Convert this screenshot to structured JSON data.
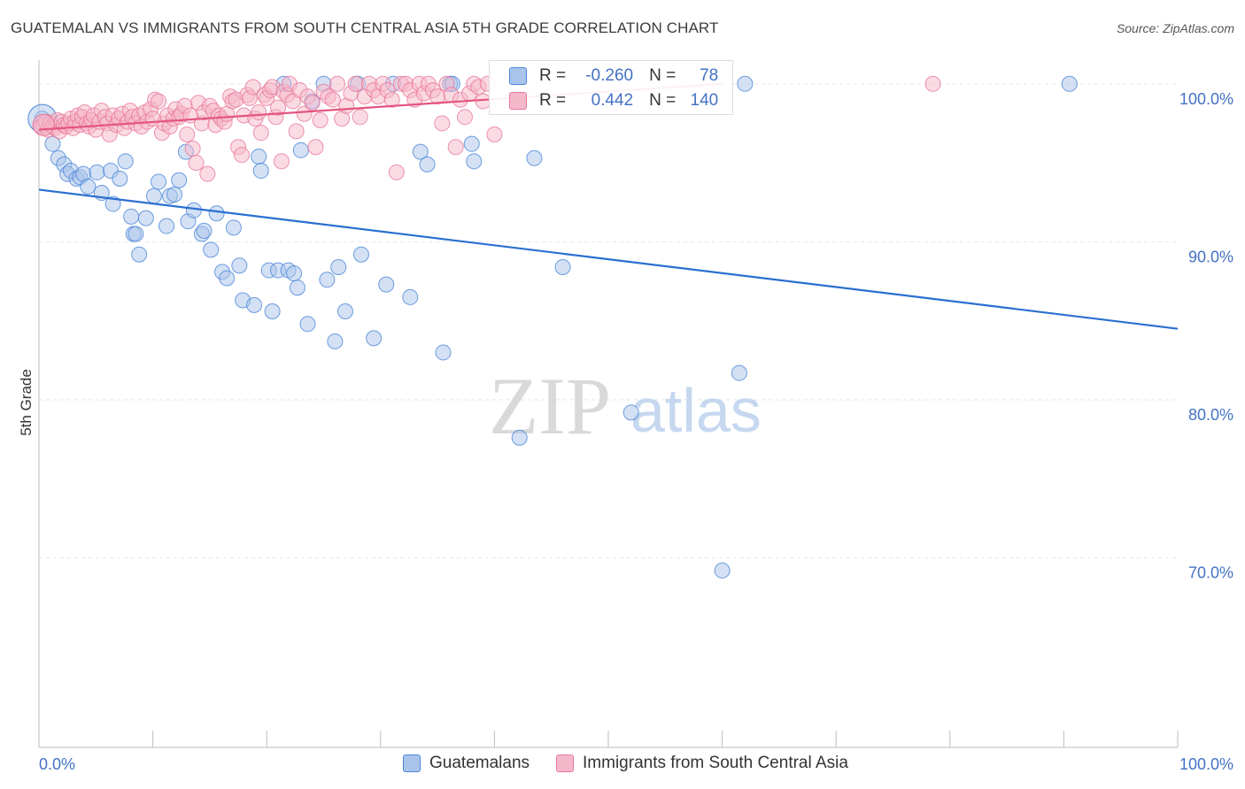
{
  "title": "GUATEMALAN VS IMMIGRANTS FROM SOUTH CENTRAL ASIA 5TH GRADE CORRELATION CHART",
  "source": "Source: ZipAtlas.com",
  "watermark": {
    "zip": "ZIP",
    "atlas": "atlas"
  },
  "colors": {
    "blue_fill": "#a9c4ea",
    "blue_stroke": "#4a86d8",
    "blue_line": "#2a6fd0",
    "pink_fill": "#f5b8ca",
    "pink_stroke": "#e8789a",
    "pink_line": "#e3557f",
    "tick_text": "#4472c4",
    "grid": "#e6e6e6"
  },
  "stats": {
    "row1": {
      "r_label": "R =",
      "r_value": "-0.260",
      "n_label": "N =",
      "n_value": "78"
    },
    "row2": {
      "r_label": "R =",
      "r_value": "0.442",
      "n_label": "N =",
      "n_value": "140"
    }
  },
  "legend": {
    "series1": "Guatemalans",
    "series2": "Immigrants from South Central Asia"
  },
  "chart_data": {
    "type": "scatter",
    "title": "GUATEMALAN VS IMMIGRANTS FROM SOUTH CENTRAL ASIA 5TH GRADE CORRELATION CHART",
    "xlabel": "",
    "ylabel": "5th Grade",
    "xlim": [
      0,
      100
    ],
    "ylim": [
      58.0,
      101.5
    ],
    "x_tick_labels": [
      "0.0%",
      "100.0%"
    ],
    "y_ticks": [
      70,
      80,
      90,
      100
    ],
    "y_tick_labels": [
      "70.0%",
      "80.0%",
      "90.0%",
      "100.0%"
    ],
    "grid": true,
    "legend_position": "bottom",
    "series": [
      {
        "name": "Guatemalans",
        "r": -0.26,
        "n": 78,
        "trend": {
          "x": [
            0,
            100
          ],
          "y": [
            93.3,
            84.5
          ]
        },
        "points": [
          [
            0.3,
            97.8
          ],
          [
            1.2,
            96.2
          ],
          [
            1.7,
            95.3
          ],
          [
            2.2,
            94.9
          ],
          [
            2.5,
            94.3
          ],
          [
            2.8,
            94.5
          ],
          [
            3.3,
            94.0
          ],
          [
            3.6,
            94.1
          ],
          [
            3.9,
            94.3
          ],
          [
            4.3,
            93.5
          ],
          [
            5.1,
            94.4
          ],
          [
            5.5,
            93.1
          ],
          [
            6.3,
            94.5
          ],
          [
            6.5,
            92.4
          ],
          [
            7.1,
            94.0
          ],
          [
            7.6,
            95.1
          ],
          [
            8.1,
            91.6
          ],
          [
            8.3,
            90.5
          ],
          [
            8.5,
            90.5
          ],
          [
            8.8,
            89.2
          ],
          [
            9.4,
            91.5
          ],
          [
            10.1,
            92.9
          ],
          [
            10.5,
            93.8
          ],
          [
            11.2,
            91.0
          ],
          [
            11.5,
            92.9
          ],
          [
            11.9,
            93.0
          ],
          [
            12.3,
            93.9
          ],
          [
            12.9,
            95.7
          ],
          [
            13.1,
            91.3
          ],
          [
            13.6,
            92.0
          ],
          [
            14.3,
            90.5
          ],
          [
            14.5,
            90.7
          ],
          [
            15.1,
            89.5
          ],
          [
            15.6,
            91.8
          ],
          [
            16.1,
            88.1
          ],
          [
            16.5,
            87.7
          ],
          [
            17.1,
            90.9
          ],
          [
            17.6,
            88.5
          ],
          [
            17.9,
            86.3
          ],
          [
            18.9,
            86.0
          ],
          [
            19.3,
            95.4
          ],
          [
            19.5,
            94.5
          ],
          [
            20.2,
            88.2
          ],
          [
            20.5,
            85.6
          ],
          [
            21.0,
            88.2
          ],
          [
            21.9,
            88.2
          ],
          [
            21.5,
            100.0
          ],
          [
            22.4,
            88.0
          ],
          [
            22.7,
            87.1
          ],
          [
            23.0,
            95.8
          ],
          [
            23.6,
            84.8
          ],
          [
            24.0,
            98.9
          ],
          [
            25.0,
            100.0
          ],
          [
            25.3,
            87.6
          ],
          [
            26.0,
            83.7
          ],
          [
            26.3,
            88.4
          ],
          [
            26.9,
            85.6
          ],
          [
            28.0,
            100.0
          ],
          [
            28.3,
            89.2
          ],
          [
            29.4,
            83.9
          ],
          [
            30.5,
            87.3
          ],
          [
            31.1,
            100.0
          ],
          [
            32.6,
            86.5
          ],
          [
            33.5,
            95.7
          ],
          [
            34.1,
            94.9
          ],
          [
            35.5,
            83.0
          ],
          [
            36.1,
            100.0
          ],
          [
            36.3,
            100.0
          ],
          [
            38.0,
            96.2
          ],
          [
            38.2,
            95.1
          ],
          [
            42.2,
            77.6
          ],
          [
            43.5,
            95.3
          ],
          [
            46.0,
            88.4
          ],
          [
            52.0,
            79.2
          ],
          [
            60.0,
            69.2
          ],
          [
            61.5,
            81.7
          ],
          [
            62.0,
            100.0
          ],
          [
            90.5,
            100.0
          ]
        ]
      },
      {
        "name": "Immigrants from South Central Asia",
        "r": 0.442,
        "n": 140,
        "trend": {
          "x": [
            0,
            60
          ],
          "y": [
            97.1,
            100.0
          ]
        },
        "points": [
          [
            0.2,
            97.3
          ],
          [
            0.4,
            97.4
          ],
          [
            0.6,
            97.6
          ],
          [
            0.8,
            97.1
          ],
          [
            1.0,
            97.5
          ],
          [
            1.2,
            97.3
          ],
          [
            1.4,
            97.2
          ],
          [
            1.6,
            97.7
          ],
          [
            1.8,
            97.0
          ],
          [
            2.0,
            97.6
          ],
          [
            2.2,
            97.4
          ],
          [
            2.4,
            97.3
          ],
          [
            2.6,
            97.5
          ],
          [
            2.8,
            97.8
          ],
          [
            3.0,
            97.2
          ],
          [
            3.2,
            97.6
          ],
          [
            3.4,
            98.0
          ],
          [
            3.6,
            97.4
          ],
          [
            3.8,
            97.9
          ],
          [
            4.0,
            98.2
          ],
          [
            4.2,
            97.5
          ],
          [
            4.4,
            97.3
          ],
          [
            4.6,
            97.7
          ],
          [
            4.8,
            98.0
          ],
          [
            5.0,
            97.1
          ],
          [
            5.3,
            97.6
          ],
          [
            5.5,
            98.3
          ],
          [
            5.8,
            97.9
          ],
          [
            6.0,
            97.5
          ],
          [
            6.2,
            96.8
          ],
          [
            6.5,
            98.0
          ],
          [
            6.8,
            97.4
          ],
          [
            7.0,
            97.8
          ],
          [
            7.3,
            98.1
          ],
          [
            7.5,
            97.2
          ],
          [
            7.8,
            97.6
          ],
          [
            8.0,
            98.3
          ],
          [
            8.2,
            97.9
          ],
          [
            8.5,
            97.5
          ],
          [
            8.8,
            98.0
          ],
          [
            9.0,
            97.3
          ],
          [
            9.3,
            98.2
          ],
          [
            9.5,
            97.6
          ],
          [
            9.8,
            98.4
          ],
          [
            10.0,
            97.8
          ],
          [
            10.2,
            99.0
          ],
          [
            10.5,
            98.9
          ],
          [
            10.8,
            96.9
          ],
          [
            11.0,
            97.5
          ],
          [
            11.3,
            98.0
          ],
          [
            11.5,
            97.3
          ],
          [
            11.8,
            97.8
          ],
          [
            12.0,
            98.4
          ],
          [
            12.3,
            97.9
          ],
          [
            12.5,
            98.1
          ],
          [
            12.8,
            98.6
          ],
          [
            13.0,
            96.8
          ],
          [
            13.3,
            98.0
          ],
          [
            13.5,
            95.9
          ],
          [
            13.8,
            95.0
          ],
          [
            14.0,
            98.8
          ],
          [
            14.3,
            97.5
          ],
          [
            14.5,
            98.2
          ],
          [
            14.8,
            94.3
          ],
          [
            15.0,
            98.6
          ],
          [
            15.3,
            98.3
          ],
          [
            15.5,
            97.4
          ],
          [
            15.8,
            98.0
          ],
          [
            16.0,
            97.8
          ],
          [
            16.3,
            97.6
          ],
          [
            16.5,
            98.1
          ],
          [
            16.8,
            99.2
          ],
          [
            17.0,
            98.9
          ],
          [
            17.3,
            99.0
          ],
          [
            17.5,
            96.0
          ],
          [
            17.8,
            95.5
          ],
          [
            18.0,
            98.0
          ],
          [
            18.3,
            99.3
          ],
          [
            18.5,
            99.1
          ],
          [
            18.8,
            99.8
          ],
          [
            19.0,
            97.8
          ],
          [
            19.3,
            98.2
          ],
          [
            19.5,
            96.9
          ],
          [
            19.8,
            99.3
          ],
          [
            20.0,
            99.1
          ],
          [
            20.3,
            99.6
          ],
          [
            20.5,
            99.8
          ],
          [
            20.8,
            97.9
          ],
          [
            21.0,
            98.5
          ],
          [
            21.3,
            95.1
          ],
          [
            21.5,
            99.5
          ],
          [
            21.8,
            99.3
          ],
          [
            22.0,
            100.0
          ],
          [
            22.3,
            98.9
          ],
          [
            22.6,
            97.0
          ],
          [
            22.9,
            99.6
          ],
          [
            23.3,
            98.1
          ],
          [
            23.6,
            99.2
          ],
          [
            24.0,
            98.8
          ],
          [
            24.3,
            96.0
          ],
          [
            24.7,
            97.7
          ],
          [
            25.0,
            99.5
          ],
          [
            25.4,
            99.2
          ],
          [
            25.8,
            99.0
          ],
          [
            26.2,
            100.0
          ],
          [
            26.6,
            97.8
          ],
          [
            27.0,
            98.6
          ],
          [
            27.4,
            99.4
          ],
          [
            27.8,
            100.0
          ],
          [
            28.2,
            97.9
          ],
          [
            28.6,
            99.2
          ],
          [
            29.0,
            100.0
          ],
          [
            29.4,
            99.6
          ],
          [
            29.8,
            99.2
          ],
          [
            30.2,
            100.0
          ],
          [
            30.6,
            99.6
          ],
          [
            31.0,
            99.0
          ],
          [
            31.4,
            94.4
          ],
          [
            31.8,
            100.0
          ],
          [
            32.2,
            100.0
          ],
          [
            32.6,
            99.6
          ],
          [
            33.0,
            99.0
          ],
          [
            33.4,
            100.0
          ],
          [
            33.8,
            99.4
          ],
          [
            34.2,
            100.0
          ],
          [
            34.6,
            99.6
          ],
          [
            35.0,
            99.2
          ],
          [
            35.4,
            97.5
          ],
          [
            35.8,
            100.0
          ],
          [
            36.2,
            99.3
          ],
          [
            36.6,
            96.0
          ],
          [
            37.0,
            99.0
          ],
          [
            37.4,
            97.9
          ],
          [
            37.8,
            99.4
          ],
          [
            38.2,
            100.0
          ],
          [
            38.6,
            99.8
          ],
          [
            39.0,
            98.9
          ],
          [
            39.4,
            100.0
          ],
          [
            40.0,
            96.8
          ],
          [
            78.5,
            100.0
          ]
        ]
      }
    ]
  }
}
